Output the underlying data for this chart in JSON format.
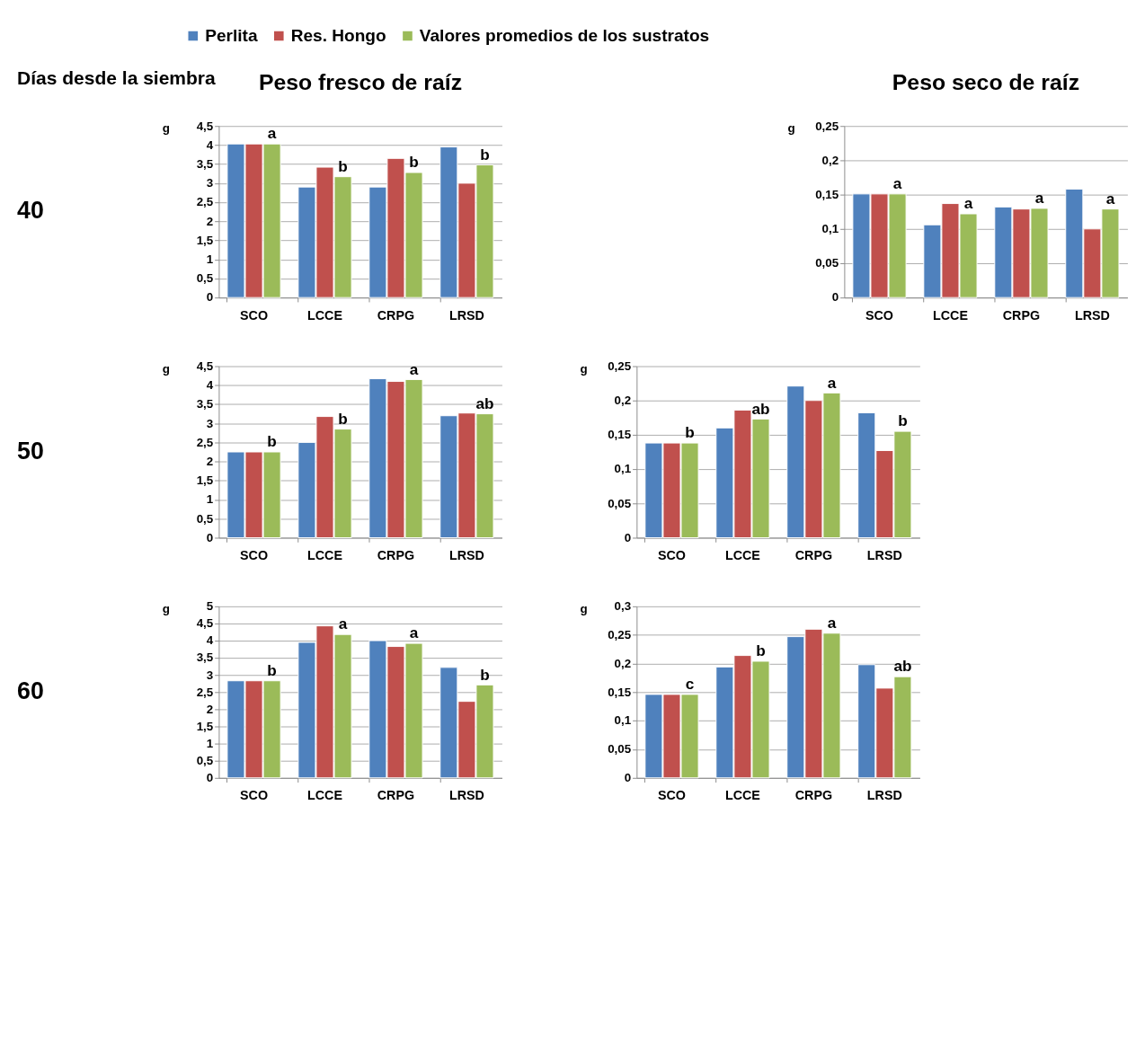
{
  "chart_data": [
    {
      "type": "bar",
      "title": "Peso fresco de raíz",
      "ylabel": "g",
      "categories": [
        "SCO",
        "LCCE",
        "CRPG",
        "LRSD"
      ],
      "series": [
        {
          "name": "Perlita",
          "color": "#4f81bd",
          "values": [
            4.03,
            2.9,
            2.9,
            3.95
          ]
        },
        {
          "name": "Res. Hongo",
          "color": "#c0504d",
          "values": [
            4.03,
            3.42,
            3.65,
            3.0
          ]
        },
        {
          "name": "Valores promedios de los sustratos",
          "color": "#9bbb59",
          "values": [
            4.03,
            3.17,
            3.28,
            3.48
          ]
        }
      ],
      "ylim": [
        0,
        4.5
      ],
      "yticks": [
        0,
        {
          "value": 0.5,
          "label": "0,5"
        },
        1,
        {
          "value": 1.5,
          "label": "1,5"
        },
        2,
        {
          "value": 2.5,
          "label": "2,5"
        },
        3,
        {
          "value": 3.5,
          "label": "3,5"
        },
        4,
        {
          "value": 4.5,
          "label": "4,5"
        }
      ],
      "grid": "y",
      "legend": "top",
      "annotations": [
        "Días desde la siembra",
        "40",
        "a",
        "b",
        "b",
        "b"
      ]
    },
    {
      "type": "bar",
      "title": "Peso seco de raíz",
      "ylabel": "g",
      "categories": [
        "SCO",
        "LCCE",
        "CRPG",
        "LRSD"
      ],
      "series": [
        {
          "color": "#4f81bd",
          "values": [
            0.151,
            0.106,
            0.132,
            0.158
          ]
        },
        {
          "color": "#c0504d",
          "values": [
            0.151,
            0.137,
            0.129,
            0.1
          ]
        },
        {
          "color": "#9bbb59",
          "values": [
            0.151,
            0.122,
            0.13,
            0.129
          ]
        }
      ],
      "ylim": [
        0,
        0.25
      ],
      "yticks": [
        0,
        {
          "value": 0.05,
          "label": "0,05"
        },
        {
          "value": 0.1,
          "label": "0,1"
        },
        {
          "value": 0.15,
          "label": "0,15"
        },
        {
          "value": 0.2,
          "label": "0,2"
        },
        {
          "value": 0.25,
          "label": "0,25"
        }
      ],
      "grid": "y",
      "annotations": [
        "a",
        "a",
        "a",
        "a"
      ]
    },
    {
      "type": "bar",
      "ylabel": "g",
      "categories": [
        "SCO",
        "LCCE",
        "CRPG",
        "LRSD"
      ],
      "series": [
        {
          "color": "#4f81bd",
          "values": [
            2.25,
            2.5,
            4.17,
            3.2
          ]
        },
        {
          "color": "#c0504d",
          "values": [
            2.25,
            3.18,
            4.1,
            3.27
          ]
        },
        {
          "color": "#9bbb59",
          "values": [
            2.25,
            2.85,
            4.15,
            3.25
          ]
        }
      ],
      "ylim": [
        0,
        4.5
      ],
      "yticks": [
        0,
        {
          "value": 0.5,
          "label": "0,5"
        },
        1,
        {
          "value": 1.5,
          "label": "1,5"
        },
        2,
        {
          "value": 2.5,
          "label": "2,5"
        },
        3,
        {
          "value": 3.5,
          "label": "3,5"
        },
        4,
        {
          "value": 4.5,
          "label": "4,5"
        }
      ],
      "grid": "y",
      "annotations": [
        "50",
        "b",
        "b",
        "a",
        "ab"
      ]
    },
    {
      "type": "bar",
      "ylabel": "g",
      "categories": [
        "SCO",
        "LCCE",
        "CRPG",
        "LRSD"
      ],
      "series": [
        {
          "color": "#4f81bd",
          "values": [
            0.138,
            0.16,
            0.221,
            0.182
          ]
        },
        {
          "color": "#c0504d",
          "values": [
            0.138,
            0.186,
            0.2,
            0.127
          ]
        },
        {
          "color": "#9bbb59",
          "values": [
            0.138,
            0.173,
            0.211,
            0.155
          ]
        }
      ],
      "ylim": [
        0,
        0.25
      ],
      "yticks": [
        0,
        {
          "value": 0.05,
          "label": "0,05"
        },
        {
          "value": 0.1,
          "label": "0,1"
        },
        {
          "value": 0.15,
          "label": "0,15"
        },
        {
          "value": 0.2,
          "label": "0,2"
        },
        {
          "value": 0.25,
          "label": "0,25"
        }
      ],
      "grid": "y",
      "annotations": [
        "b",
        "ab",
        "a",
        "b"
      ]
    },
    {
      "type": "bar",
      "ylabel": "g",
      "categories": [
        "SCO",
        "LCCE",
        "CRPG",
        "LRSD"
      ],
      "series": [
        {
          "color": "#4f81bd",
          "values": [
            2.83,
            3.95,
            4.0,
            3.22
          ]
        },
        {
          "color": "#c0504d",
          "values": [
            2.83,
            4.43,
            3.83,
            2.23
          ]
        },
        {
          "color": "#9bbb59",
          "values": [
            2.83,
            4.18,
            3.92,
            2.71
          ]
        }
      ],
      "ylim": [
        0,
        5
      ],
      "yticks": [
        0,
        {
          "value": 0.5,
          "label": "0,5"
        },
        1,
        {
          "value": 1.5,
          "label": "1,5"
        },
        2,
        {
          "value": 2.5,
          "label": "2,5"
        },
        3,
        {
          "value": 3.5,
          "label": "3,5"
        },
        4,
        {
          "value": 4.5,
          "label": "4,5"
        },
        5
      ],
      "grid": "y",
      "annotations": [
        "60",
        "b",
        "a",
        "a",
        "b"
      ]
    },
    {
      "type": "bar",
      "ylabel": "g",
      "categories": [
        "SCO",
        "LCCE",
        "CRPG",
        "LRSD"
      ],
      "series": [
        {
          "color": "#4f81bd",
          "values": [
            0.146,
            0.194,
            0.247,
            0.198
          ]
        },
        {
          "color": "#c0504d",
          "values": [
            0.146,
            0.214,
            0.26,
            0.157
          ]
        },
        {
          "color": "#9bbb59",
          "values": [
            0.146,
            0.204,
            0.253,
            0.177
          ]
        }
      ],
      "ylim": [
        0,
        0.3
      ],
      "yticks": [
        0,
        {
          "value": 0.05,
          "label": "0,05"
        },
        {
          "value": 0.1,
          "label": "0,1"
        },
        {
          "value": 0.15,
          "label": "0,15"
        },
        {
          "value": 0.2,
          "label": "0,2"
        },
        {
          "value": 0.25,
          "label": "0,25"
        },
        {
          "value": 0.3,
          "label": "0,3"
        }
      ],
      "grid": "y",
      "annotations": [
        "c",
        "b",
        "a",
        "ab"
      ]
    }
  ]
}
